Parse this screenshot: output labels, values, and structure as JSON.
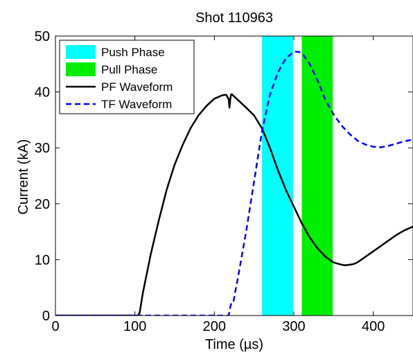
{
  "chart_data": {
    "type": "line",
    "title": "Shot 110963",
    "xlabel": "Time (µs)",
    "ylabel": "Current (kA)",
    "xlim": [
      0,
      450
    ],
    "ylim": [
      0,
      50
    ],
    "xticks": [
      0,
      100,
      200,
      300,
      400
    ],
    "yticks": [
      0,
      10,
      20,
      30,
      40,
      50
    ],
    "grid": false,
    "legend_position": "top-left",
    "bands": [
      {
        "name": "Push Phase",
        "x_start": 260,
        "x_end": 299,
        "color": "#00ffff"
      },
      {
        "name": "Pull Phase",
        "x_start": 310,
        "x_end": 349,
        "color": "#00ee00"
      }
    ],
    "series": [
      {
        "name": "PF Waveform",
        "color": "#000000",
        "dash": "solid",
        "x": [
          0,
          100,
          104,
          106,
          110,
          120,
          130,
          140,
          150,
          160,
          170,
          180,
          190,
          200,
          210,
          215,
          218,
          219,
          220,
          221,
          222,
          224,
          228,
          240,
          250,
          260,
          270,
          280,
          290,
          300,
          310,
          320,
          330,
          340,
          350,
          360,
          365,
          370,
          375,
          380,
          390,
          400,
          410,
          420,
          430,
          440,
          450
        ],
        "y": [
          0,
          0,
          0,
          0.5,
          4,
          11,
          17,
          22.5,
          27,
          30.5,
          33.5,
          35.8,
          37.5,
          38.8,
          39.4,
          39.5,
          38.7,
          37.2,
          38.7,
          39.5,
          39.6,
          39.3,
          38.8,
          37.2,
          35.8,
          33.5,
          30,
          26,
          22.5,
          19.5,
          16.5,
          14,
          12,
          10.5,
          9.5,
          9.1,
          9.0,
          9.1,
          9.2,
          9.5,
          10.5,
          11.5,
          12.5,
          13.5,
          14.5,
          15.3,
          15.9
        ]
      },
      {
        "name": "TF Waveform",
        "color": "#0000ff",
        "dash": "dashed",
        "x": [
          0,
          200,
          215,
          218,
          220,
          222,
          224,
          226,
          230,
          240,
          250,
          260,
          270,
          280,
          290,
          300,
          305,
          310,
          320,
          330,
          340,
          350,
          360,
          370,
          380,
          390,
          400,
          410,
          420,
          430,
          440,
          450
        ],
        "y": [
          0,
          0,
          0,
          0,
          1.5,
          2.5,
          2.5,
          4,
          7,
          15,
          24,
          33,
          39.5,
          43.5,
          46,
          47.2,
          47.2,
          47,
          45,
          42,
          38.5,
          36,
          34,
          32.5,
          31.3,
          30.6,
          30.2,
          30.1,
          30.4,
          30.8,
          31.2,
          31.5
        ]
      }
    ]
  }
}
